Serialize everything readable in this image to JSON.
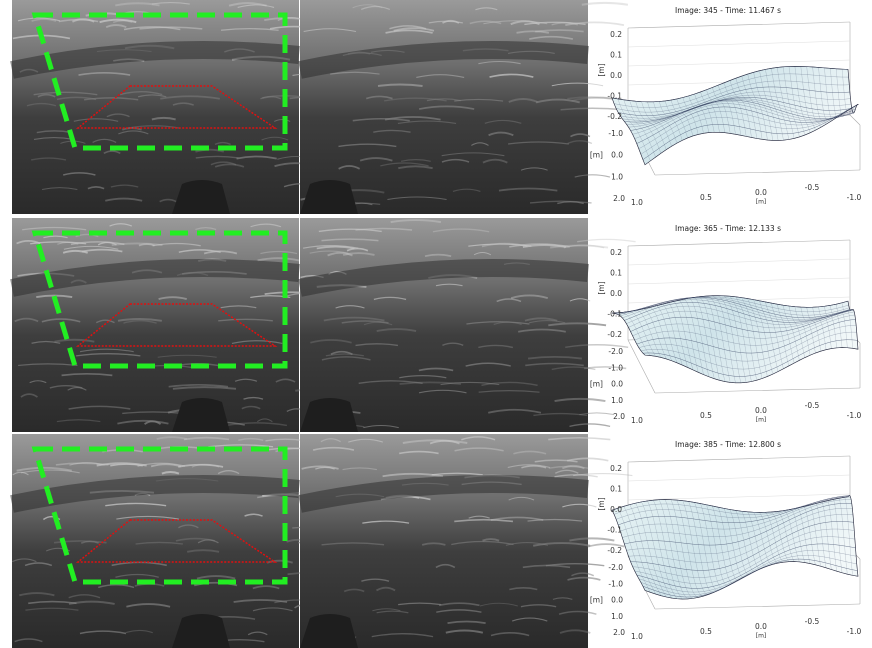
{
  "plots": [
    {
      "title": "Image: 345 - Time: 11.467 s",
      "z_unit": "[m]",
      "z_ticks": [
        "0.2",
        "0.1",
        "0.0",
        "-0.1",
        "-0.2"
      ],
      "depth_unit": "[m]",
      "depth_ticks": [
        "-1.0",
        "0.0",
        "1.0",
        "2.0"
      ],
      "x_unit": "[m]",
      "x_ticks": [
        "1.0",
        "0.5",
        "0.0",
        "-0.5",
        "-1.0"
      ]
    },
    {
      "title": "Image: 365 - Time: 12.133 s",
      "z_unit": "[m]",
      "z_ticks": [
        "0.2",
        "0.1",
        "0.0",
        "-0.1",
        "-0.2"
      ],
      "depth_unit": "[m]",
      "depth_ticks": [
        "-2.0",
        "-1.0",
        "0.0",
        "1.0",
        "2.0"
      ],
      "x_unit": "[m]",
      "x_ticks": [
        "1.0",
        "0.5",
        "0.0",
        "-0.5",
        "-1.0"
      ]
    },
    {
      "title": "Image: 385 - Time: 12.800 s",
      "z_unit": "[m]",
      "z_ticks": [
        "0.2",
        "0.1",
        "0.0",
        "-0.1",
        "-0.2"
      ],
      "depth_unit": "[m]",
      "depth_ticks": [
        "-2.0",
        "-1.0",
        "0.0",
        "1.0",
        "2.0"
      ],
      "x_unit": "[m]",
      "x_ticks": [
        "1.0",
        "0.5",
        "0.0",
        "-0.5",
        "-1.0"
      ]
    }
  ]
}
